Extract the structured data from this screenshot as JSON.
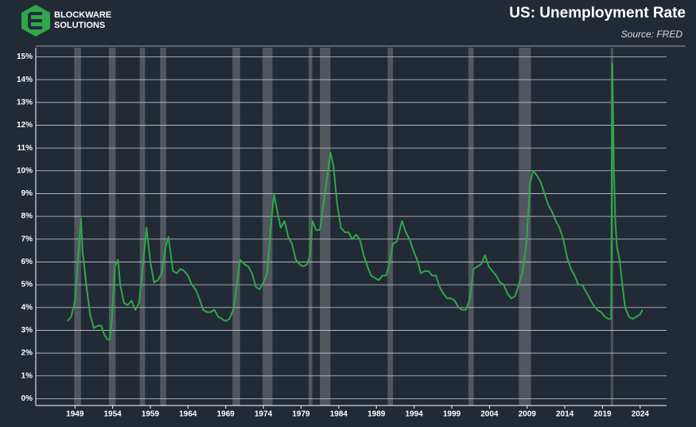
{
  "chart_data": {
    "type": "line",
    "title": "US: Unemployment Rate",
    "subtitle": "Source: FRED",
    "brand": [
      "BLOCKWARE",
      "SOLUTIONS"
    ],
    "color": "#2fa84a",
    "recession_color": "#5a5f66",
    "grid": true,
    "xlim": [
      1943.8,
      2027.5
    ],
    "ylim": [
      -0.3,
      15.4
    ],
    "xticks": [
      1949,
      1954,
      1959,
      1964,
      1969,
      1974,
      1979,
      1984,
      1989,
      1994,
      1999,
      2004,
      2009,
      2014,
      2019,
      2024
    ],
    "yticks": [
      {
        "value": 0,
        "label": "0%"
      },
      {
        "value": 1,
        "label": "1%"
      },
      {
        "value": 2,
        "label": "2%"
      },
      {
        "value": 3,
        "label": "3%"
      },
      {
        "value": 4,
        "label": "4%"
      },
      {
        "value": 5,
        "label": "5%"
      },
      {
        "value": 6,
        "label": "6%"
      },
      {
        "value": 7,
        "label": "7%"
      },
      {
        "value": 8,
        "label": "8%"
      },
      {
        "value": 9,
        "label": "9%"
      },
      {
        "value": 10,
        "label": "10%"
      },
      {
        "value": 11,
        "label": "11%"
      },
      {
        "value": 12,
        "label": "12%"
      },
      {
        "value": 13,
        "label": "13%"
      },
      {
        "value": 14,
        "label": "14%"
      },
      {
        "value": 15,
        "label": "15%"
      }
    ],
    "recessions": [
      [
        1948.9,
        1949.8
      ],
      [
        1953.5,
        1954.4
      ],
      [
        1957.6,
        1958.3
      ],
      [
        1960.3,
        1961.1
      ],
      [
        1969.9,
        1970.9
      ],
      [
        1973.9,
        1975.2
      ],
      [
        1980.0,
        1980.5
      ],
      [
        1981.5,
        1982.9
      ],
      [
        1990.5,
        1991.2
      ],
      [
        2001.2,
        2001.9
      ],
      [
        2007.9,
        2009.5
      ],
      [
        2020.1,
        2020.4
      ]
    ],
    "x": [
      1948.0,
      1948.5,
      1949.0,
      1949.5,
      1949.8,
      1950.0,
      1950.5,
      1951.0,
      1951.5,
      1952.0,
      1952.5,
      1952.9,
      1953.3,
      1953.6,
      1953.9,
      1954.3,
      1954.7,
      1955.0,
      1955.5,
      1956.0,
      1956.5,
      1957.0,
      1957.5,
      1958.0,
      1958.5,
      1959.0,
      1959.5,
      1960.0,
      1960.5,
      1961.0,
      1961.4,
      1962.0,
      1962.5,
      1963.0,
      1963.5,
      1964.0,
      1964.5,
      1965.0,
      1965.5,
      1966.0,
      1966.5,
      1967.0,
      1967.5,
      1968.0,
      1968.5,
      1969.0,
      1969.5,
      1970.0,
      1970.5,
      1970.9,
      1971.5,
      1972.0,
      1972.5,
      1973.0,
      1973.5,
      1974.0,
      1974.5,
      1974.9,
      1975.4,
      1975.8,
      1976.3,
      1976.8,
      1977.3,
      1977.8,
      1978.3,
      1978.8,
      1979.3,
      1979.8,
      1980.2,
      1980.5,
      1981.0,
      1981.5,
      1982.0,
      1982.5,
      1982.9,
      1983.3,
      1983.8,
      1984.3,
      1984.8,
      1985.3,
      1985.8,
      1986.3,
      1986.8,
      1987.3,
      1987.8,
      1988.3,
      1988.8,
      1989.3,
      1989.8,
      1990.3,
      1990.7,
      1991.2,
      1991.7,
      1992.4,
      1992.9,
      1993.4,
      1993.9,
      1994.4,
      1994.9,
      1995.4,
      1995.9,
      1996.4,
      1996.9,
      1997.4,
      1997.9,
      1998.4,
      1998.9,
      1999.4,
      1999.9,
      2000.4,
      2000.9,
      2001.4,
      2001.9,
      2002.4,
      2002.9,
      2003.4,
      2003.9,
      2004.4,
      2004.9,
      2005.4,
      2005.9,
      2006.4,
      2006.9,
      2007.4,
      2007.9,
      2008.4,
      2008.9,
      2009.4,
      2009.8,
      2010.3,
      2010.8,
      2011.3,
      2011.8,
      2012.3,
      2012.8,
      2013.3,
      2013.8,
      2014.3,
      2014.8,
      2015.3,
      2015.8,
      2016.3,
      2016.8,
      2017.3,
      2017.8,
      2018.3,
      2018.8,
      2019.3,
      2019.8,
      2020.15,
      2020.3,
      2020.5,
      2020.7,
      2020.9,
      2021.3,
      2021.7,
      2022.0,
      2022.5,
      2023.0,
      2023.5,
      2024.0,
      2024.3
    ],
    "values": [
      3.4,
      3.6,
      4.3,
      6.6,
      7.9,
      6.5,
      5.0,
      3.7,
      3.1,
      3.2,
      3.2,
      2.8,
      2.6,
      2.6,
      3.5,
      5.8,
      6.1,
      5.0,
      4.2,
      4.1,
      4.3,
      3.9,
      4.2,
      5.8,
      7.5,
      6.0,
      5.1,
      5.2,
      5.5,
      6.6,
      7.1,
      5.6,
      5.5,
      5.7,
      5.6,
      5.4,
      5.0,
      4.8,
      4.4,
      3.9,
      3.8,
      3.8,
      3.9,
      3.6,
      3.5,
      3.4,
      3.5,
      3.9,
      5.0,
      6.1,
      5.9,
      5.8,
      5.5,
      4.9,
      4.8,
      5.1,
      5.5,
      7.2,
      9.0,
      8.3,
      7.5,
      7.8,
      7.1,
      6.8,
      6.1,
      5.9,
      5.8,
      5.9,
      6.3,
      7.8,
      7.4,
      7.4,
      8.6,
      9.8,
      10.8,
      10.2,
      8.5,
      7.5,
      7.3,
      7.3,
      7.0,
      7.2,
      7.0,
      6.3,
      5.8,
      5.4,
      5.3,
      5.2,
      5.4,
      5.4,
      5.9,
      6.8,
      6.9,
      7.8,
      7.3,
      7.0,
      6.5,
      6.1,
      5.5,
      5.6,
      5.6,
      5.4,
      5.4,
      4.9,
      4.6,
      4.4,
      4.4,
      4.3,
      4.0,
      3.9,
      3.9,
      4.4,
      5.7,
      5.8,
      5.9,
      6.3,
      5.8,
      5.6,
      5.4,
      5.1,
      5.0,
      4.6,
      4.4,
      4.5,
      5.0,
      5.6,
      6.8,
      9.5,
      10.0,
      9.8,
      9.5,
      9.0,
      8.5,
      8.2,
      7.8,
      7.5,
      7.0,
      6.2,
      5.7,
      5.4,
      5.0,
      5.0,
      4.7,
      4.4,
      4.1,
      3.9,
      3.8,
      3.6,
      3.5,
      3.5,
      14.7,
      10.2,
      7.8,
      6.7,
      6.0,
      4.8,
      4.0,
      3.6,
      3.5,
      3.6,
      3.7,
      3.9
    ]
  }
}
